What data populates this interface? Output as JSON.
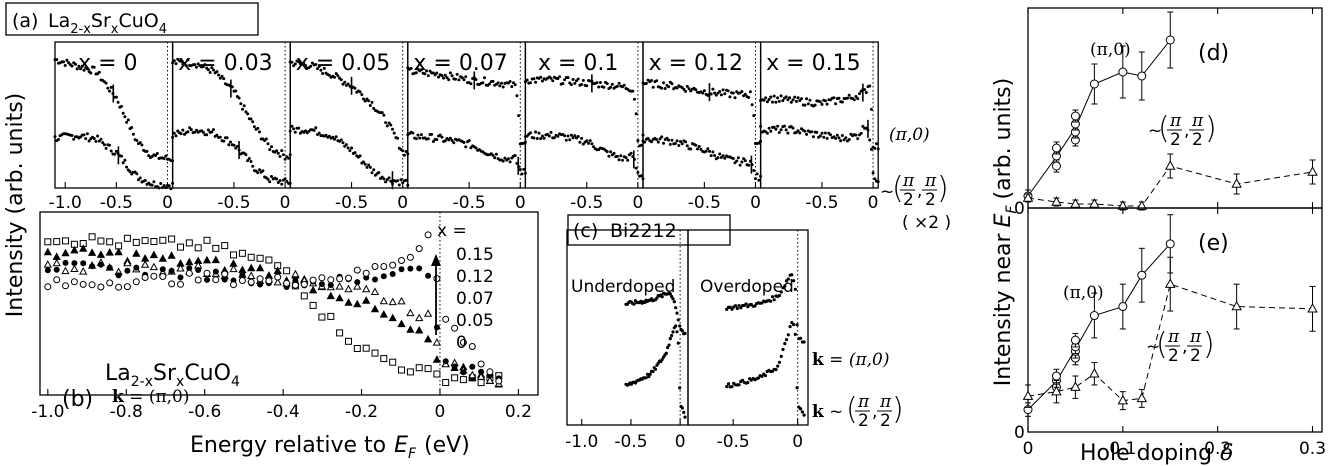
{
  "figure": {
    "shared_y_label": "Intensity (arb. units)",
    "shared_x_label_main": "Energy relative to",
    "shared_x_label_sym": "E",
    "shared_x_label_sub": "F",
    "shared_x_label_unit": "(eV)",
    "right_y_label": "Intensity near",
    "right_y_label_sym": "E",
    "right_y_label_sub": "F",
    "right_y_label_unit": "(arb. units)"
  },
  "chart_data": [
    {
      "id": "a",
      "panel_label": "(a)",
      "title": "La2-xSr xCuO4",
      "title_parts": [
        "La",
        "2-x",
        "Sr",
        "x",
        "CuO",
        "4"
      ],
      "type": "line",
      "subpanels": [
        {
          "label": "x = 0",
          "xlim": [
            -1.1,
            0.05
          ],
          "ticks": [
            "-1.0",
            "-0.5",
            "0"
          ],
          "tick_vals": [
            -1.0,
            -0.5,
            0.0
          ],
          "upper": {
            "x": [
              -1.1,
              -0.9,
              -0.7,
              -0.5,
              -0.3,
              -0.15,
              0.0,
              0.05
            ],
            "y": [
              0.88,
              0.84,
              0.8,
              0.62,
              0.32,
              0.22,
              0.2,
              0.2
            ]
          },
          "lower": {
            "x": [
              -1.1,
              -0.9,
              -0.7,
              -0.5,
              -0.3,
              -0.15,
              0.0,
              0.05
            ],
            "y": [
              0.34,
              0.36,
              0.34,
              0.24,
              0.08,
              0.03,
              0.02,
              0.02
            ]
          },
          "marks": [
            -0.53,
            -0.48
          ]
        },
        {
          "label": "x = 0.03",
          "xlim": [
            -1.1,
            0.05
          ],
          "ticks": [
            "-0.5",
            "0"
          ],
          "tick_vals": [
            -0.5,
            0.0
          ],
          "upper": {
            "x": [
              -1.1,
              -0.9,
              -0.7,
              -0.5,
              -0.3,
              -0.15,
              0.0,
              0.05
            ],
            "y": [
              0.86,
              0.86,
              0.8,
              0.66,
              0.42,
              0.28,
              0.22,
              0.22
            ]
          },
          "lower": {
            "x": [
              -1.1,
              -0.9,
              -0.7,
              -0.5,
              -0.3,
              -0.15,
              0.0,
              0.05
            ],
            "y": [
              0.36,
              0.4,
              0.38,
              0.3,
              0.14,
              0.06,
              0.04,
              0.04
            ]
          },
          "marks": [
            -0.53,
            -0.45
          ]
        },
        {
          "label": "x = 0.05",
          "xlim": [
            -1.1,
            0.05
          ],
          "ticks": [
            "-0.5",
            "0"
          ],
          "tick_vals": [
            -0.5,
            0.0
          ],
          "upper": {
            "x": [
              -1.1,
              -0.9,
              -0.7,
              -0.5,
              -0.3,
              -0.15,
              -0.05,
              0.0,
              0.05
            ],
            "y": [
              0.86,
              0.84,
              0.78,
              0.7,
              0.58,
              0.45,
              0.32,
              0.25,
              0.24
            ]
          },
          "lower": {
            "x": [
              -1.1,
              -0.9,
              -0.7,
              -0.5,
              -0.3,
              -0.15,
              0.0,
              0.05
            ],
            "y": [
              0.4,
              0.4,
              0.36,
              0.26,
              0.12,
              0.06,
              0.04,
              0.04
            ]
          },
          "marks": [
            -0.5,
            -0.1
          ]
        },
        {
          "label": "x = 0.07",
          "xlim": [
            -1.1,
            0.05
          ],
          "ticks": [
            "-0.5",
            "0"
          ],
          "tick_vals": [
            -0.5,
            0.0
          ],
          "upper": {
            "x": [
              -1.1,
              -0.8,
              -0.5,
              -0.2,
              -0.05,
              -0.02,
              0.0,
              0.05
            ],
            "y": [
              0.8,
              0.78,
              0.74,
              0.72,
              0.7,
              0.56,
              0.32,
              0.3
            ]
          },
          "lower": {
            "x": [
              -1.1,
              -0.8,
              -0.5,
              -0.3,
              -0.15,
              -0.05,
              0.0,
              0.05
            ],
            "y": [
              0.36,
              0.34,
              0.3,
              0.24,
              0.2,
              0.2,
              0.12,
              0.1
            ]
          },
          "marks": [
            -0.45,
            -0.02
          ]
        },
        {
          "label": "x = 0.1",
          "xlim": [
            -1.1,
            0.05
          ],
          "ticks": [
            "-0.5",
            "0"
          ],
          "tick_vals": [
            -0.5,
            0.0
          ],
          "upper": {
            "x": [
              -1.1,
              -0.8,
              -0.5,
              -0.2,
              -0.05,
              -0.02,
              0.0,
              0.05
            ],
            "y": [
              0.74,
              0.74,
              0.72,
              0.7,
              0.68,
              0.56,
              0.32,
              0.3
            ]
          },
          "lower": {
            "x": [
              -1.1,
              -0.8,
              -0.5,
              -0.3,
              -0.15,
              -0.05,
              0.0,
              0.05
            ],
            "y": [
              0.36,
              0.36,
              0.32,
              0.24,
              0.2,
              0.22,
              0.1,
              0.08
            ]
          },
          "marks": [
            -0.45,
            -0.04
          ]
        },
        {
          "label": "x = 0.12",
          "xlim": [
            -1.1,
            0.05
          ],
          "ticks": [
            "-0.5",
            "0"
          ],
          "tick_vals": [
            -0.5,
            0.0
          ],
          "upper": {
            "x": [
              -1.1,
              -0.8,
              -0.5,
              -0.2,
              -0.05,
              -0.02,
              0.0,
              0.05
            ],
            "y": [
              0.72,
              0.7,
              0.66,
              0.64,
              0.64,
              0.54,
              0.32,
              0.3
            ]
          },
          "lower": {
            "x": [
              -1.1,
              -0.8,
              -0.5,
              -0.3,
              -0.15,
              -0.05,
              0.0,
              0.05
            ],
            "y": [
              0.34,
              0.32,
              0.26,
              0.2,
              0.18,
              0.18,
              0.08,
              0.06
            ]
          },
          "marks": [
            -0.45,
            -0.04
          ]
        },
        {
          "label": "x = 0.15",
          "xlim": [
            -1.1,
            0.05
          ],
          "ticks": [
            "-0.5",
            "0"
          ],
          "tick_vals": [
            -0.5,
            0.0
          ],
          "upper": {
            "x": [
              -1.1,
              -0.8,
              -0.5,
              -0.2,
              -0.08,
              -0.03,
              0.0,
              0.05
            ],
            "y": [
              0.62,
              0.6,
              0.58,
              0.62,
              0.66,
              0.72,
              0.3,
              0.28
            ]
          },
          "lower": {
            "x": [
              -1.1,
              -0.8,
              -0.5,
              -0.3,
              -0.15,
              -0.06,
              -0.02,
              0.0,
              0.05
            ],
            "y": [
              0.4,
              0.4,
              0.36,
              0.34,
              0.36,
              0.44,
              0.3,
              0.08,
              0.06
            ]
          },
          "marks": [
            -0.1,
            -0.05
          ]
        }
      ],
      "right_labels": {
        "upper": "(π,0)",
        "lower_prefix": "~",
        "lower_frac": "π",
        "lower_den": "2",
        "scale": "( ×2 )"
      }
    },
    {
      "id": "b",
      "panel_label": "(b)",
      "type": "scatter",
      "title_parts": [
        "La",
        "2-x",
        "Sr",
        "x",
        "CuO",
        "4"
      ],
      "k_label_bold": "k",
      "k_label_rest": " = (π,0)",
      "xlim": [
        -1.02,
        0.25
      ],
      "ticks": [
        "-1.0",
        "-0.8",
        "-0.6",
        "-0.4",
        "-0.2",
        "0",
        "0.2"
      ],
      "tick_vals": [
        -1.0,
        -0.8,
        -0.6,
        -0.4,
        -0.2,
        0.0,
        0.2
      ],
      "legend_title": "x =",
      "series": [
        {
          "name": "0.15",
          "marker": "square-open",
          "x": [
            -1.0,
            -0.8,
            -0.6,
            -0.4,
            -0.3,
            -0.2,
            -0.1,
            0.0,
            0.15
          ],
          "y": [
            0.86,
            0.83,
            0.82,
            0.7,
            0.45,
            0.25,
            0.16,
            0.1,
            0.08
          ]
        },
        {
          "name": "0.12",
          "marker": "triangle-filled",
          "x": [
            -1.0,
            -0.8,
            -0.6,
            -0.4,
            -0.2,
            -0.1,
            -0.03,
            0.0,
            0.15
          ],
          "y": [
            0.78,
            0.76,
            0.72,
            0.66,
            0.5,
            0.38,
            0.3,
            0.15,
            0.08
          ]
        },
        {
          "name": "0.07",
          "marker": "triangle-open",
          "x": [
            -1.0,
            -0.8,
            -0.6,
            -0.4,
            -0.2,
            -0.1,
            -0.03,
            0.0,
            0.15
          ],
          "y": [
            0.7,
            0.7,
            0.68,
            0.64,
            0.58,
            0.5,
            0.42,
            0.2,
            0.08
          ]
        },
        {
          "name": "0.05",
          "marker": "circle-filled",
          "x": [
            -1.0,
            -0.8,
            -0.6,
            -0.4,
            -0.2,
            -0.05,
            -0.02,
            0.0,
            0.15
          ],
          "y": [
            0.7,
            0.68,
            0.66,
            0.62,
            0.62,
            0.72,
            0.6,
            0.2,
            0.08
          ]
        },
        {
          "name": "0",
          "marker": "circle-open",
          "x": [
            -1.0,
            -0.8,
            -0.6,
            -0.4,
            -0.2,
            -0.08,
            -0.02,
            0.0,
            0.15
          ],
          "y": [
            0.6,
            0.62,
            0.64,
            0.62,
            0.66,
            0.76,
            0.9,
            0.45,
            0.08
          ]
        }
      ]
    },
    {
      "id": "c",
      "panel_label": "(c)",
      "title": "Bi2212",
      "type": "line",
      "ticks_left": [
        "-1.0",
        "-0.5",
        "0"
      ],
      "ticks_right": [
        "-0.5",
        "0"
      ],
      "subpanels": [
        {
          "label": "Underdoped",
          "upper": {
            "x": [
              -0.55,
              -0.3,
              -0.1,
              -0.05,
              0.0,
              0.05
            ],
            "y": [
              0.62,
              0.64,
              0.68,
              0.62,
              0.5,
              0.46
            ]
          },
          "lower": {
            "x": [
              -0.55,
              -0.3,
              -0.15,
              -0.05,
              -0.02,
              0.0,
              0.05
            ],
            "y": [
              0.2,
              0.26,
              0.36,
              0.52,
              0.46,
              0.1,
              0.05
            ]
          }
        },
        {
          "label": "Overdoped",
          "upper": {
            "x": [
              -0.55,
              -0.3,
              -0.15,
              -0.05,
              -0.02,
              0.0,
              0.05
            ],
            "y": [
              0.6,
              0.62,
              0.66,
              0.78,
              0.72,
              0.46,
              0.42
            ]
          },
          "lower": {
            "x": [
              -0.55,
              -0.3,
              -0.15,
              -0.05,
              -0.02,
              0.0,
              0.05
            ],
            "y": [
              0.2,
              0.24,
              0.3,
              0.52,
              0.5,
              0.1,
              0.05
            ]
          }
        }
      ],
      "right_labels": {
        "upper_bold": "k",
        "upper_rest": " = (π,0)",
        "lower_bold": "k",
        "lower_rest": " ~"
      }
    },
    {
      "id": "d",
      "panel_label": "(d)",
      "type": "scatter",
      "xlim": [
        0,
        0.31
      ],
      "ylim": [
        0,
        1.0
      ],
      "series": [
        {
          "name": "(π,0)",
          "marker": "circle-open",
          "line": "solid",
          "x": [
            0.0,
            0.03,
            0.03,
            0.03,
            0.05,
            0.05,
            0.05,
            0.05,
            0.07,
            0.1,
            0.12,
            0.15
          ],
          "y": [
            0.06,
            0.21,
            0.26,
            0.3,
            0.34,
            0.38,
            0.42,
            0.46,
            0.62,
            0.68,
            0.66,
            0.84
          ],
          "err": [
            0.03,
            0.03,
            0.03,
            0.03,
            0.03,
            0.03,
            0.03,
            0.03,
            0.1,
            0.13,
            0.12,
            0.14
          ]
        },
        {
          "name": "~(π/2, π/2)",
          "marker": "triangle-open",
          "line": "dashed",
          "x": [
            0.0,
            0.03,
            0.05,
            0.07,
            0.1,
            0.12,
            0.15,
            0.22,
            0.3
          ],
          "y": [
            0.05,
            0.03,
            0.02,
            0.02,
            0.01,
            0.01,
            0.21,
            0.12,
            0.18
          ],
          "err": [
            0.02,
            0.02,
            0.02,
            0.02,
            0.02,
            0.02,
            0.06,
            0.05,
            0.06
          ]
        }
      ],
      "labels": {
        "pi0": "(π,0)",
        "diag_prefix": "~",
        "diag_num": "π",
        "diag_den": "2"
      }
    },
    {
      "id": "e",
      "panel_label": "(e)",
      "type": "scatter",
      "xlim": [
        0,
        0.31
      ],
      "ylim": [
        0,
        1.0
      ],
      "xticks": [
        "0",
        "0.1",
        "0.2",
        "0.3"
      ],
      "xtick_vals": [
        0.0,
        0.1,
        0.2,
        0.3
      ],
      "xlabel_main": "Hole doping",
      "xlabel_sym": "δ",
      "series": [
        {
          "name": "(π,0)",
          "marker": "circle-open",
          "line": "solid",
          "x": [
            0.0,
            0.03,
            0.03,
            0.03,
            0.05,
            0.05,
            0.05,
            0.05,
            0.07,
            0.1,
            0.12,
            0.15
          ],
          "y": [
            0.1,
            0.2,
            0.23,
            0.25,
            0.33,
            0.36,
            0.38,
            0.41,
            0.52,
            0.56,
            0.7,
            0.84
          ],
          "err": [
            0.03,
            0.03,
            0.03,
            0.03,
            0.03,
            0.03,
            0.03,
            0.03,
            0.1,
            0.1,
            0.12,
            0.13
          ]
        },
        {
          "name": "~(π/2, π/2)",
          "marker": "triangle-open",
          "line": "dashed",
          "x": [
            0.0,
            0.03,
            0.05,
            0.07,
            0.1,
            0.12,
            0.15,
            0.22,
            0.3
          ],
          "y": [
            0.16,
            0.18,
            0.2,
            0.26,
            0.14,
            0.15,
            0.66,
            0.56,
            0.55
          ],
          "err": [
            0.05,
            0.05,
            0.05,
            0.05,
            0.04,
            0.04,
            0.12,
            0.1,
            0.1
          ]
        }
      ],
      "labels": {
        "pi0": "(π,0)",
        "diag_prefix": "~",
        "diag_num": "π",
        "diag_den": "2"
      }
    }
  ]
}
